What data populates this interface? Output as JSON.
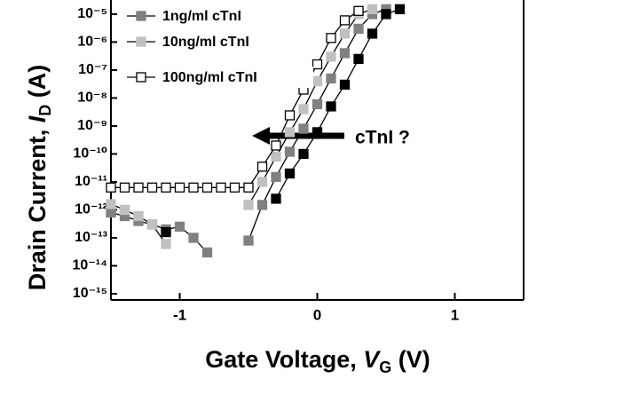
{
  "chart_data": {
    "type": "line",
    "xlabel": "Gate Voltage, ",
    "xlabel_var": "V",
    "xlabel_sub": "G",
    "xlabel_unit": " (V)",
    "ylabel": "Drain Current, ",
    "ylabel_var": "I",
    "ylabel_sub": "D",
    "ylabel_unit": " (A)",
    "annotation": "cTnI ?",
    "log_y": true,
    "xlim": [
      -1.5,
      1.5
    ],
    "ylim": [
      6e-16,
      3.2e-05
    ],
    "xticks": [
      -1,
      0,
      1
    ],
    "yticks": [
      {
        "value": 1e-15,
        "label": "10⁻¹⁵"
      },
      {
        "value": 1e-14,
        "label": "10⁻¹⁴"
      },
      {
        "value": 1e-13,
        "label": "10⁻¹³"
      },
      {
        "value": 1e-12,
        "label": "10⁻¹²"
      },
      {
        "value": 1e-11,
        "label": "10⁻¹¹"
      },
      {
        "value": 1e-10,
        "label": "10⁻¹⁰"
      },
      {
        "value": 1e-09,
        "label": "10⁻⁹"
      },
      {
        "value": 1e-08,
        "label": "10⁻⁸"
      },
      {
        "value": 1e-07,
        "label": "10⁻⁷"
      },
      {
        "value": 1e-06,
        "label": "10⁻⁶"
      },
      {
        "value": 1e-05,
        "label": "10⁻⁵"
      }
    ],
    "series": [
      {
        "name": "1ng/ml cTnI",
        "color": "#808080",
        "x": [
          -1.5,
          -1.4,
          -1.3,
          -1.2,
          -1.1,
          -1.0,
          -0.9,
          -0.8,
          -0.6,
          -0.5,
          -0.4,
          -0.3,
          -0.2,
          -0.1,
          0,
          0.1,
          0.2,
          0.3,
          0.4,
          0.5
        ],
        "values": [
          8e-13,
          6e-13,
          4e-13,
          3e-13,
          2e-13,
          2.5e-13,
          1e-13,
          3e-14,
          null,
          8e-14,
          1.5e-12,
          1.5e-11,
          1.2e-10,
          8e-10,
          6e-09,
          5e-08,
          4e-07,
          3e-06,
          1e-05,
          1.5e-05
        ]
      },
      {
        "name": "10ng/ml cTnI",
        "color": "#c0c0c0",
        "x": [
          -1.5,
          -1.4,
          -1.3,
          -1.2,
          -1.1,
          -0.8,
          -0.5,
          -0.4,
          -0.3,
          -0.2,
          -0.1,
          0,
          0.1,
          0.2,
          0.3,
          0.4
        ],
        "values": [
          1.6e-12,
          1e-12,
          6e-13,
          3e-13,
          6e-14,
          null,
          1.5e-12,
          1e-11,
          8e-11,
          6e-10,
          4e-09,
          4e-08,
          3e-07,
          2e-06,
          1e-05,
          1.5e-05
        ]
      },
      {
        "name": "100ng/ml cTnI",
        "color": "#ffffff",
        "x": [
          -1.5,
          -1.4,
          -1.3,
          -1.2,
          -1.1,
          -1.0,
          -0.9,
          -0.8,
          -0.7,
          -0.6,
          -0.5,
          -0.4,
          -0.3,
          -0.2,
          -0.1,
          0,
          0.1,
          0.2,
          0.3
        ],
        "values": [
          6.3e-12,
          6.3e-12,
          6.3e-12,
          6.3e-12,
          6.3e-12,
          6.3e-12,
          6.3e-12,
          6.3e-12,
          6.3e-12,
          6.3e-12,
          6.3e-12,
          3.5e-11,
          2e-10,
          2.4e-09,
          2e-08,
          1.6e-07,
          1.4e-06,
          6e-06,
          1.3e-05
        ]
      },
      {
        "color": "#000000",
        "x": [
          -1.1,
          -0.6,
          -0.3,
          -0.2,
          -0.1,
          0,
          0.1,
          0.2,
          0.3,
          0.4,
          0.5,
          0.6
        ],
        "values": [
          1.6e-13,
          null,
          2.5e-12,
          2e-11,
          1e-10,
          6e-10,
          5e-09,
          3e-08,
          2.5e-07,
          2e-06,
          1e-05,
          1.5e-05
        ]
      }
    ]
  }
}
